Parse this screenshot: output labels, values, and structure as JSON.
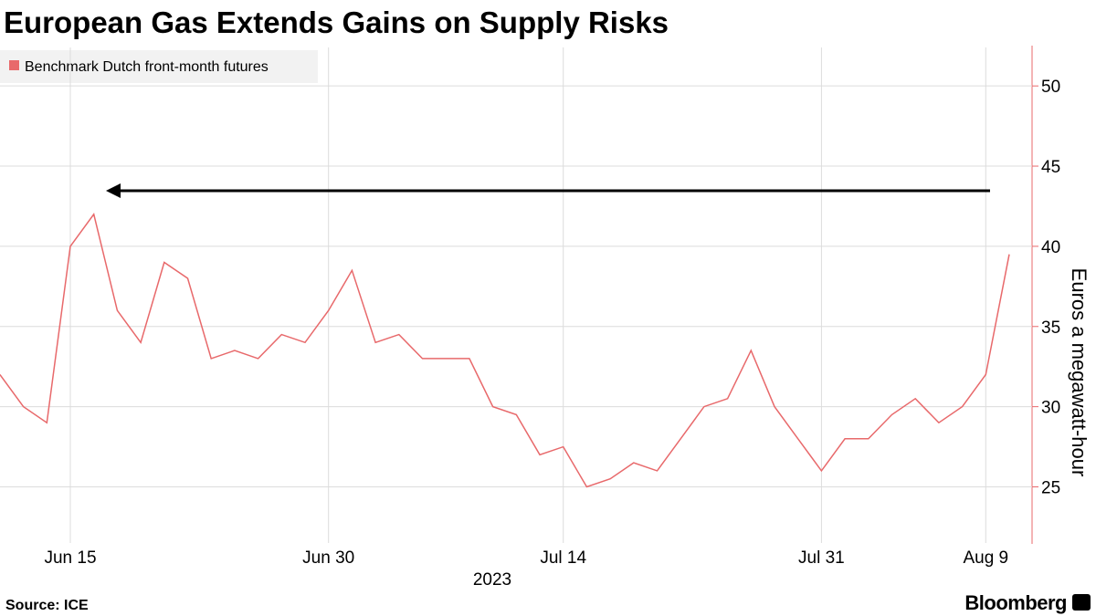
{
  "chart_data": {
    "type": "line",
    "title": "European Gas Extends Gains on Supply Risks",
    "source": "Source: ICE",
    "brand": "Bloomberg",
    "x_label": "2023",
    "y_label": "Euros a megawatt-hour",
    "x": [
      "2023-06-12",
      "2023-06-13",
      "2023-06-14",
      "2023-06-15",
      "2023-06-16",
      "2023-06-19",
      "2023-06-20",
      "2023-06-21",
      "2023-06-22",
      "2023-06-23",
      "2023-06-26",
      "2023-06-27",
      "2023-06-28",
      "2023-06-29",
      "2023-06-30",
      "2023-07-03",
      "2023-07-04",
      "2023-07-05",
      "2023-07-06",
      "2023-07-07",
      "2023-07-10",
      "2023-07-11",
      "2023-07-12",
      "2023-07-13",
      "2023-07-14",
      "2023-07-17",
      "2023-07-18",
      "2023-07-19",
      "2023-07-20",
      "2023-07-21",
      "2023-07-24",
      "2023-07-25",
      "2023-07-26",
      "2023-07-27",
      "2023-07-28",
      "2023-07-31",
      "2023-08-01",
      "2023-08-02",
      "2023-08-03",
      "2023-08-04",
      "2023-08-07",
      "2023-08-08",
      "2023-08-09",
      "2023-08-10"
    ],
    "series": [
      {
        "name": "Benchmark Dutch front-month futures",
        "color": "#e8696b",
        "values": [
          32,
          30,
          29,
          40,
          42,
          36,
          34,
          39,
          38,
          33,
          33.5,
          33,
          34.5,
          34,
          36,
          38.5,
          34,
          34.5,
          33,
          33,
          33,
          30,
          29.5,
          27,
          27.5,
          25,
          25.5,
          26.5,
          26,
          28,
          30,
          30.5,
          33.5,
          30,
          28,
          26,
          28,
          28,
          29.5,
          30.5,
          29,
          30,
          32,
          39.5
        ]
      }
    ],
    "xticks": [
      {
        "value": "2023-06-15",
        "label": "Jun 15"
      },
      {
        "value": "2023-06-30",
        "label": "Jun 30"
      },
      {
        "value": "2023-07-14",
        "label": "Jul 14"
      },
      {
        "value": "2023-07-31",
        "label": "Jul 31"
      },
      {
        "value": "2023-08-09",
        "label": "Aug 9"
      }
    ],
    "ylim": [
      21.5,
      52.4
    ],
    "yticks": [
      25,
      30,
      35,
      40,
      45,
      50
    ],
    "grid": true
  }
}
